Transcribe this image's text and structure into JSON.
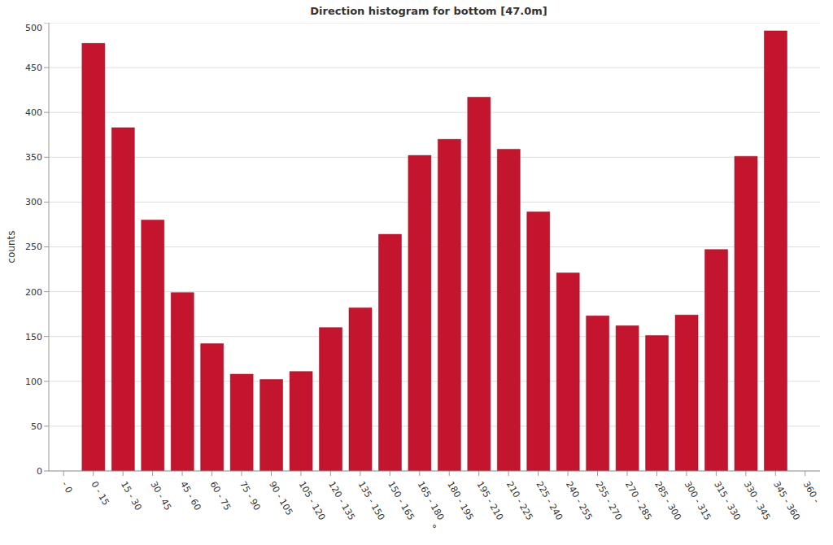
{
  "chart_data": {
    "type": "bar",
    "title": "Direction histogram for bottom [47.0m]",
    "x_label": "°",
    "y_label": "counts",
    "categories": [
      "- 0",
      "0 - 15",
      "15 - 30",
      "30 - 45",
      "45 - 60",
      "60 - 75",
      "75 - 90",
      "90 - 105",
      "105 - 120",
      "120 - 135",
      "135 - 150",
      "150 - 165",
      "165 - 180",
      "180 - 195",
      "195 - 210",
      "210 - 225",
      "225 - 240",
      "240 - 255",
      "255 - 270",
      "270 - 285",
      "285 - 300",
      "300 - 315",
      "315 - 330",
      "330 - 345",
      "345 - 360",
      "360 -"
    ],
    "values": [
      null,
      477,
      383,
      280,
      199,
      142,
      108,
      102,
      111,
      160,
      182,
      264,
      352,
      370,
      417,
      359,
      289,
      221,
      173,
      162,
      151,
      174,
      247,
      351,
      491,
      null
    ],
    "color": "#c4152f",
    "ylim": [
      0,
      500
    ],
    "yticks": [
      0,
      50,
      100,
      150,
      200,
      250,
      300,
      350,
      400,
      450,
      500
    ],
    "grid": true
  }
}
